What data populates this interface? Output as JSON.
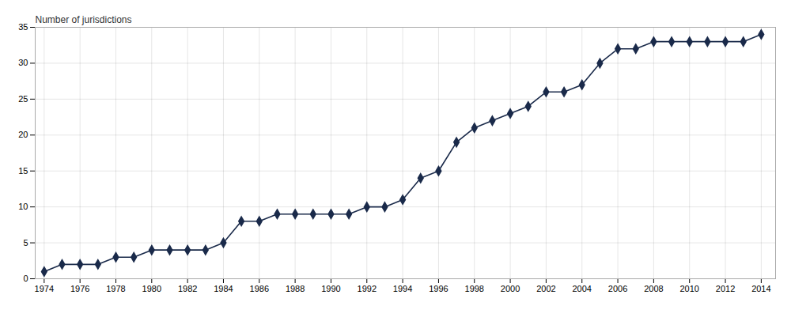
{
  "chart_data": {
    "type": "line",
    "ylabel": "Number of jurisdictions",
    "x": [
      1974,
      1975,
      1976,
      1977,
      1978,
      1979,
      1980,
      1981,
      1982,
      1983,
      1984,
      1985,
      1986,
      1987,
      1988,
      1989,
      1990,
      1991,
      1992,
      1993,
      1994,
      1995,
      1996,
      1997,
      1998,
      1999,
      2000,
      2001,
      2002,
      2003,
      2004,
      2005,
      2006,
      2007,
      2008,
      2009,
      2010,
      2011,
      2012,
      2013,
      2014
    ],
    "values": [
      1,
      2,
      2,
      2,
      3,
      3,
      4,
      4,
      4,
      4,
      5,
      8,
      8,
      9,
      9,
      9,
      9,
      9,
      10,
      10,
      11,
      14,
      15,
      19,
      21,
      22,
      23,
      24,
      26,
      26,
      27,
      30,
      32,
      32,
      33,
      33,
      33,
      33,
      33,
      33,
      34
    ],
    "color": "#1a2a4a",
    "marker": "diamond",
    "xlim": [
      1973.5,
      2014.8
    ],
    "ylim": [
      0,
      35
    ],
    "xticks": [
      1974,
      1976,
      1978,
      1980,
      1982,
      1984,
      1986,
      1988,
      1990,
      1992,
      1994,
      1996,
      1998,
      2000,
      2002,
      2004,
      2006,
      2008,
      2010,
      2012,
      2014
    ],
    "yticks": [
      0,
      5,
      10,
      15,
      20,
      25,
      30,
      35
    ],
    "grid": true
  }
}
